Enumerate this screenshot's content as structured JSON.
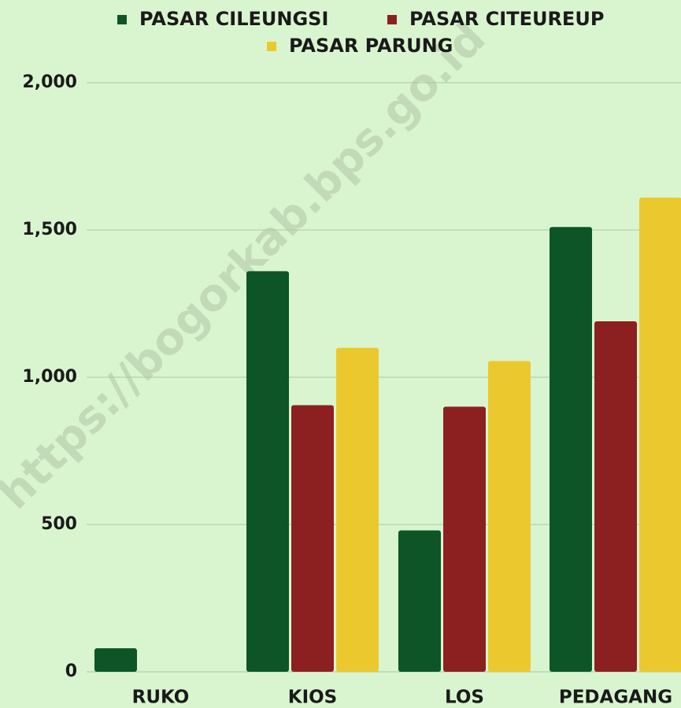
{
  "chart_data": {
    "type": "bar",
    "watermark": "https://bogorkab.bps.go.id",
    "categories": [
      "RUKO",
      "KIOS",
      "LOS",
      "PEDAGANG"
    ],
    "series": [
      {
        "name": "PASAR CILEUNGSI",
        "color": "#0d5527",
        "values": [
          80,
          1360,
          480,
          1510
        ]
      },
      {
        "name": "PASAR CITEUREUP",
        "color": "#8c2020",
        "values": [
          0,
          905,
          900,
          1190
        ]
      },
      {
        "name": "PASAR PARUNG",
        "color": "#ebc92e",
        "values": [
          0,
          1100,
          1055,
          1610
        ]
      }
    ],
    "ylim": [
      0,
      2000
    ],
    "yticks": [
      0,
      500,
      {
        "value": 1000,
        "label": "1,000"
      },
      {
        "value": 1500,
        "label": "1,500"
      },
      {
        "value": 2000,
        "label": "2,000"
      }
    ],
    "grid": true
  }
}
